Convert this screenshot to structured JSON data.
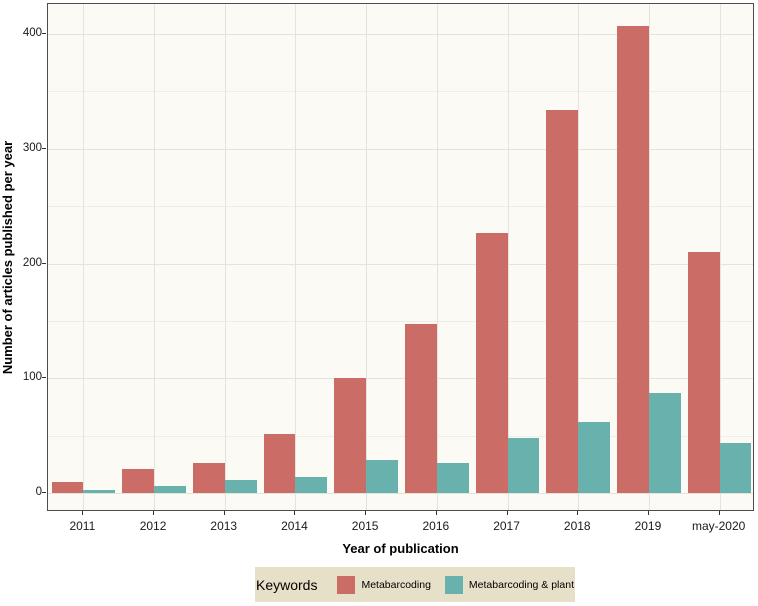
{
  "figure": {
    "background": "#ffffff",
    "panel_background": "#fbfaf5",
    "panel_border_color": "#4d4d4d",
    "gridline_major_color": "#e4e4dd",
    "gridline_minor_color": "#eeeee8"
  },
  "legend": {
    "title": "Keywords",
    "background": "#e7e0c8",
    "entries": [
      {
        "label": "Metabarcoding",
        "color": "#cb6d66"
      },
      {
        "label": "Metabarcoding & plant",
        "color": "#69b1ac"
      }
    ]
  },
  "chart_data": {
    "type": "bar",
    "title": "",
    "xlabel": "Year of publication",
    "ylabel": "Number of articles published per year",
    "categories": [
      "2011",
      "2012",
      "2013",
      "2014",
      "2015",
      "2016",
      "2017",
      "2018",
      "2019",
      "may-2020"
    ],
    "series": [
      {
        "name": "Metabarcoding",
        "color": "#cb6d66",
        "values": [
          10,
          21,
          26,
          51,
          100,
          147,
          227,
          334,
          407,
          210
        ]
      },
      {
        "name": "Metabarcoding & plant",
        "color": "#69b1ac",
        "values": [
          3,
          6,
          11,
          14,
          29,
          26,
          48,
          62,
          87,
          44
        ]
      }
    ],
    "ylim": [
      0,
      426
    ],
    "yticks": [
      0,
      100,
      200,
      300,
      400
    ],
    "ytick_labels": [
      "0",
      "100",
      "200",
      "300",
      "400"
    ],
    "yminor": [
      50,
      150,
      250,
      350
    ],
    "grid": true,
    "legend_position": "bottom",
    "legend_title": "Keywords"
  }
}
